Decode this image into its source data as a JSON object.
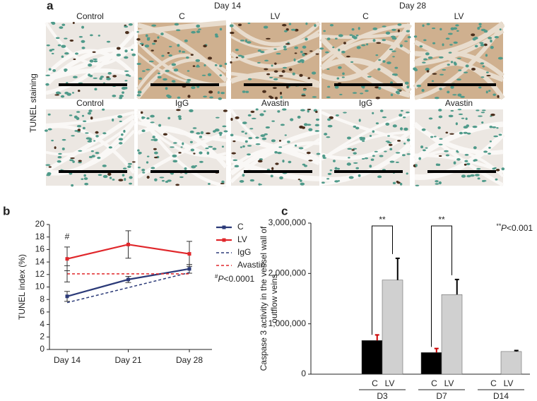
{
  "figure": {
    "panel_labels": [
      "a",
      "b",
      "c"
    ],
    "a_row_label": "TUNEL staining",
    "a_day_headers": [
      "Day 14",
      "Day 28"
    ],
    "a_row1": [
      "Control",
      "C",
      "LV",
      "C",
      "LV"
    ],
    "a_row2": [
      "Control",
      "IgG",
      "Avastin",
      "IgG",
      "Avastin"
    ]
  },
  "chart_data": [
    {
      "type": "line",
      "y_label": "TUNEL index (%)",
      "categories": [
        "Day 14",
        "Day 21",
        "Day 28"
      ],
      "series": [
        {
          "name": "C",
          "color": "#2b3a78",
          "style": "solid",
          "values": [
            8.5,
            11.2,
            12.9
          ],
          "errors": [
            0.8,
            0.5,
            0.7
          ]
        },
        {
          "name": "LV",
          "color": "#e0272b",
          "style": "solid",
          "values": [
            14.5,
            16.8,
            15.3
          ],
          "errors": [
            1.9,
            2.2,
            2.0
          ]
        },
        {
          "name": "IgG",
          "color": "#2b3a78",
          "style": "dashed",
          "values": [
            7.5,
            9.9,
            12.3
          ]
        },
        {
          "name": "Avastin",
          "color": "#e0272b",
          "style": "dashed",
          "values": [
            12.1,
            12.1,
            12.1
          ],
          "errors": [
            1.3,
            null,
            null
          ]
        }
      ],
      "annotation": "#",
      "note_parts": [
        "#",
        "P",
        "<0.0001"
      ],
      "ylim": [
        0,
        20
      ],
      "yticks": [
        0,
        2,
        4,
        6,
        8,
        10,
        12,
        14,
        16,
        18,
        20
      ]
    },
    {
      "type": "bar",
      "y_label": [
        "Caspase 3 activity in the vessel wall of",
        "outflow veins"
      ],
      "categories": [
        "D3",
        "D7",
        "D14"
      ],
      "series": [
        {
          "name": "C",
          "color": "#000000",
          "values": [
            670000,
            430000,
            null
          ],
          "errors": [
            110000,
            80000,
            null
          ]
        },
        {
          "name": "LV",
          "color": "#d0d0d0",
          "values": [
            1870000,
            1580000,
            450000
          ],
          "errors": [
            430000,
            300000,
            20000
          ]
        }
      ],
      "significance": [
        "**",
        "**",
        null
      ],
      "note_parts": [
        "**",
        "P",
        "<0.001"
      ],
      "ylim": [
        0,
        3000000
      ],
      "yticks": [
        0,
        {
          "value": 1000000,
          "label": "1,000,000"
        },
        {
          "value": 2000000,
          "label": "2,000,000"
        },
        {
          "value": 3000000,
          "label": "3,000,000"
        }
      ]
    }
  ]
}
